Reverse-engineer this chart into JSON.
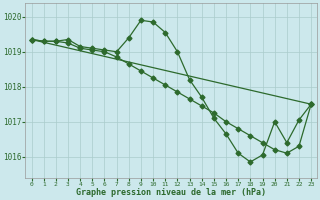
{
  "title": "Graphe pression niveau de la mer (hPa)",
  "background_color": "#cce8ec",
  "grid_color": "#aacccc",
  "line_color": "#2d6a2d",
  "xlim": [
    -0.5,
    23.5
  ],
  "ylim": [
    1015.4,
    1020.4
  ],
  "yticks": [
    1016,
    1017,
    1018,
    1019,
    1020
  ],
  "xticks": [
    0,
    1,
    2,
    3,
    4,
    5,
    6,
    7,
    8,
    9,
    10,
    11,
    12,
    13,
    14,
    15,
    16,
    17,
    18,
    19,
    20,
    21,
    22,
    23
  ],
  "series1_x": [
    0,
    1,
    2,
    3,
    4,
    5,
    6,
    7,
    8,
    9,
    10,
    11,
    12,
    13,
    14,
    15,
    16,
    17,
    18,
    19,
    20,
    21,
    22,
    23
  ],
  "series1_y": [
    1019.35,
    1019.3,
    1019.3,
    1019.35,
    1019.15,
    1019.1,
    1019.05,
    1019.0,
    1019.4,
    1019.9,
    1019.85,
    1019.55,
    1019.0,
    1018.2,
    1017.7,
    1017.1,
    1016.65,
    1016.1,
    1015.85,
    1016.05,
    1017.0,
    1016.4,
    1017.05,
    1017.5
  ],
  "series2_x": [
    0,
    23
  ],
  "series2_y": [
    1019.35,
    1017.5
  ],
  "series3_x": [
    0,
    1,
    2,
    3,
    4,
    5,
    6,
    7,
    8,
    9,
    10,
    11,
    12,
    13,
    14,
    15,
    16,
    17,
    18,
    19,
    20,
    21,
    22,
    23
  ],
  "series3_y": [
    1019.35,
    1019.3,
    1019.3,
    1019.25,
    1019.1,
    1019.05,
    1019.0,
    1018.85,
    1018.65,
    1018.45,
    1018.25,
    1018.05,
    1017.85,
    1017.65,
    1017.45,
    1017.25,
    1017.0,
    1016.8,
    1016.6,
    1016.4,
    1016.2,
    1016.1,
    1016.3,
    1017.5
  ]
}
